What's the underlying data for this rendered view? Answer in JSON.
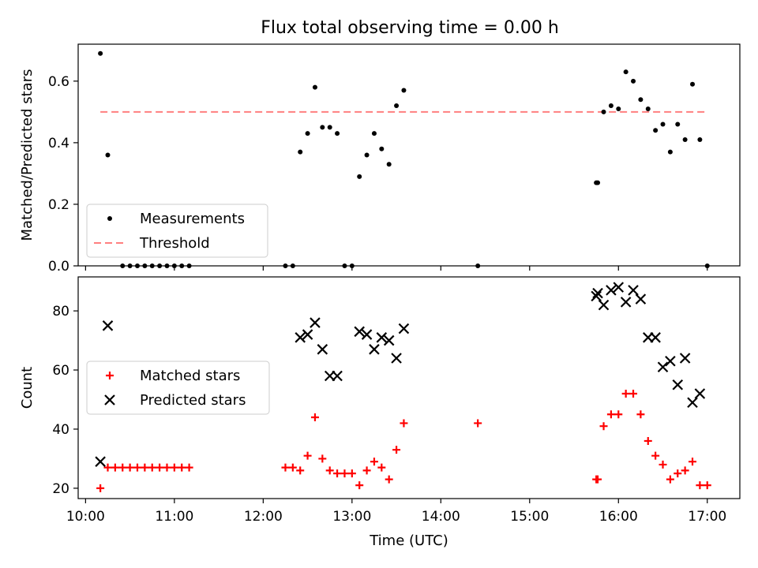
{
  "title": "Flux total observing time = 0.00 h",
  "chart_data": [
    {
      "type": "scatter",
      "ylabel": "Matched/Predicted stars",
      "ylim": [
        0,
        0.72
      ],
      "yticks": [
        "0.0",
        "0.2",
        "0.4",
        "0.6"
      ],
      "ytick_values": [
        0,
        0.2,
        0.4,
        0.6
      ],
      "threshold": 0.5,
      "threshold_color": "#ff7f7f",
      "legend": {
        "placement": "lower-left",
        "entries": [
          "Measurements",
          "Threshold"
        ]
      },
      "series": [
        {
          "name": "Measurements",
          "marker": "dot",
          "color": "#000000",
          "points": [
            [
              "10:10",
              0.69
            ],
            [
              "10:15",
              0.36
            ],
            [
              "10:25",
              0.0
            ],
            [
              "10:30",
              0.0
            ],
            [
              "10:35",
              0.0
            ],
            [
              "10:40",
              0.0
            ],
            [
              "10:45",
              0.0
            ],
            [
              "10:50",
              0.0
            ],
            [
              "10:55",
              0.0
            ],
            [
              "11:00",
              0.0
            ],
            [
              "11:05",
              0.0
            ],
            [
              "11:10",
              0.0
            ],
            [
              "12:15",
              0.0
            ],
            [
              "12:20",
              0.0
            ],
            [
              "12:25",
              0.37
            ],
            [
              "12:30",
              0.43
            ],
            [
              "12:35",
              0.58
            ],
            [
              "12:40",
              0.45
            ],
            [
              "12:45",
              0.45
            ],
            [
              "12:50",
              0.43
            ],
            [
              "12:55",
              0.0
            ],
            [
              "13:00",
              0.0
            ],
            [
              "13:05",
              0.29
            ],
            [
              "13:10",
              0.36
            ],
            [
              "13:15",
              0.43
            ],
            [
              "13:20",
              0.38
            ],
            [
              "13:25",
              0.33
            ],
            [
              "13:30",
              0.52
            ],
            [
              "13:35",
              0.57
            ],
            [
              "14:25",
              0.0
            ],
            [
              "15:45",
              0.27
            ],
            [
              "15:46",
              0.27
            ],
            [
              "15:50",
              0.5
            ],
            [
              "15:55",
              0.52
            ],
            [
              "16:00",
              0.51
            ],
            [
              "16:05",
              0.63
            ],
            [
              "16:10",
              0.6
            ],
            [
              "16:15",
              0.54
            ],
            [
              "16:20",
              0.51
            ],
            [
              "16:25",
              0.44
            ],
            [
              "16:30",
              0.46
            ],
            [
              "16:35",
              0.37
            ],
            [
              "16:40",
              0.46
            ],
            [
              "16:45",
              0.41
            ],
            [
              "16:50",
              0.59
            ],
            [
              "16:55",
              0.41
            ],
            [
              "17:00",
              0.0
            ]
          ]
        }
      ]
    },
    {
      "type": "scatter",
      "ylabel": "Count",
      "xlabel": "Time (UTC)",
      "ylim": [
        16.5,
        91.5
      ],
      "yticks": [
        "20",
        "40",
        "60",
        "80"
      ],
      "ytick_values": [
        20,
        40,
        60,
        80
      ],
      "xlim": [
        "09:55",
        "17:22"
      ],
      "xticks": [
        "10:00",
        "11:00",
        "12:00",
        "13:00",
        "14:00",
        "15:00",
        "16:00",
        "17:00"
      ],
      "legend": {
        "placement": "center-left",
        "entries": [
          "Matched stars",
          "Predicted stars"
        ]
      },
      "series": [
        {
          "name": "Matched stars",
          "marker": "plus",
          "color": "#ff0000",
          "points": [
            [
              "10:10",
              20
            ],
            [
              "10:15",
              27
            ],
            [
              "10:20",
              27
            ],
            [
              "10:25",
              27
            ],
            [
              "10:30",
              27
            ],
            [
              "10:35",
              27
            ],
            [
              "10:40",
              27
            ],
            [
              "10:45",
              27
            ],
            [
              "10:50",
              27
            ],
            [
              "10:55",
              27
            ],
            [
              "11:00",
              27
            ],
            [
              "11:05",
              27
            ],
            [
              "11:10",
              27
            ],
            [
              "12:15",
              27
            ],
            [
              "12:20",
              27
            ],
            [
              "12:25",
              26
            ],
            [
              "12:30",
              31
            ],
            [
              "12:35",
              44
            ],
            [
              "12:40",
              30
            ],
            [
              "12:45",
              26
            ],
            [
              "12:50",
              25
            ],
            [
              "12:55",
              25
            ],
            [
              "13:00",
              25
            ],
            [
              "13:05",
              21
            ],
            [
              "13:10",
              26
            ],
            [
              "13:15",
              29
            ],
            [
              "13:20",
              27
            ],
            [
              "13:25",
              23
            ],
            [
              "13:30",
              33
            ],
            [
              "13:35",
              42
            ],
            [
              "14:25",
              42
            ],
            [
              "15:45",
              23
            ],
            [
              "15:46",
              23
            ],
            [
              "15:50",
              41
            ],
            [
              "15:55",
              45
            ],
            [
              "16:00",
              45
            ],
            [
              "16:05",
              52
            ],
            [
              "16:10",
              52
            ],
            [
              "16:15",
              45
            ],
            [
              "16:20",
              36
            ],
            [
              "16:25",
              31
            ],
            [
              "16:30",
              28
            ],
            [
              "16:35",
              23
            ],
            [
              "16:40",
              25
            ],
            [
              "16:45",
              26
            ],
            [
              "16:50",
              29
            ],
            [
              "16:55",
              21
            ],
            [
              "17:00",
              21
            ]
          ]
        },
        {
          "name": "Predicted stars",
          "marker": "x",
          "color": "#000000",
          "points": [
            [
              "10:10",
              29
            ],
            [
              "10:15",
              75
            ],
            [
              "12:25",
              71
            ],
            [
              "12:30",
              72
            ],
            [
              "12:35",
              76
            ],
            [
              "12:40",
              67
            ],
            [
              "12:45",
              58
            ],
            [
              "12:50",
              58
            ],
            [
              "13:05",
              73
            ],
            [
              "13:10",
              72
            ],
            [
              "13:15",
              67
            ],
            [
              "13:20",
              71
            ],
            [
              "13:25",
              70
            ],
            [
              "13:30",
              64
            ],
            [
              "13:35",
              74
            ],
            [
              "15:45",
              85
            ],
            [
              "15:46",
              86
            ],
            [
              "15:50",
              82
            ],
            [
              "15:55",
              87
            ],
            [
              "16:00",
              88
            ],
            [
              "16:05",
              83
            ],
            [
              "16:10",
              87
            ],
            [
              "16:15",
              84
            ],
            [
              "16:20",
              71
            ],
            [
              "16:25",
              71
            ],
            [
              "16:30",
              61
            ],
            [
              "16:35",
              63
            ],
            [
              "16:40",
              55
            ],
            [
              "16:45",
              64
            ],
            [
              "16:50",
              49
            ],
            [
              "16:55",
              52
            ]
          ]
        }
      ]
    }
  ]
}
